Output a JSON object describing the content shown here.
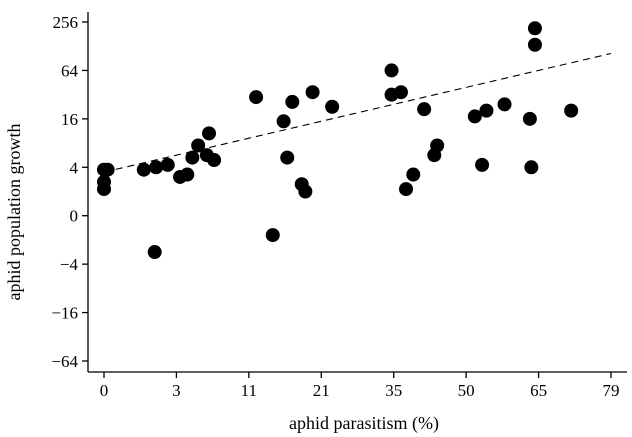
{
  "chart_data": {
    "type": "scatter",
    "title": "",
    "xlabel": "aphid parasitism (%)",
    "ylabel": "aphid population growth",
    "x_ticks": [
      "0",
      "3",
      "11",
      "21",
      "35",
      "50",
      "65",
      "79"
    ],
    "y_ticks": [
      "256",
      "64",
      "16",
      "4",
      "0",
      "−4",
      "−16",
      "−64"
    ],
    "x_tick_index_range": [
      0,
      7
    ],
    "y_tick_index_range": [
      0,
      7
    ],
    "grid": false,
    "legend": "none",
    "marker_color": "#000000",
    "trend_line": {
      "style": "dashed",
      "from": [
        0,
        3.1
      ],
      "to": [
        7,
        0.65
      ]
    },
    "points": [
      [
        0.0,
        3.3
      ],
      [
        0.0,
        3.45
      ],
      [
        0.0,
        3.05
      ],
      [
        0.55,
        3.05
      ],
      [
        0.05,
        3.05
      ],
      [
        0.7,
        4.75
      ],
      [
        0.72,
        3.0
      ],
      [
        0.88,
        2.95
      ],
      [
        1.05,
        3.2
      ],
      [
        1.15,
        3.15
      ],
      [
        1.22,
        2.8
      ],
      [
        1.3,
        2.55
      ],
      [
        1.42,
        2.75
      ],
      [
        1.52,
        2.85
      ],
      [
        1.45,
        2.3
      ],
      [
        2.1,
        1.55
      ],
      [
        2.33,
        4.4
      ],
      [
        2.53,
        2.8
      ],
      [
        2.48,
        2.05
      ],
      [
        2.6,
        1.65
      ],
      [
        2.73,
        3.35
      ],
      [
        2.78,
        3.5
      ],
      [
        2.88,
        1.45
      ],
      [
        3.15,
        1.75
      ],
      [
        3.97,
        1.0
      ],
      [
        3.97,
        1.5
      ],
      [
        4.1,
        1.45
      ],
      [
        4.17,
        3.45
      ],
      [
        4.27,
        3.15
      ],
      [
        4.42,
        1.8
      ],
      [
        4.56,
        2.75
      ],
      [
        4.6,
        2.55
      ],
      [
        5.12,
        1.95
      ],
      [
        5.28,
        1.83
      ],
      [
        5.22,
        2.95
      ],
      [
        5.53,
        1.7
      ],
      [
        5.88,
        2.0
      ],
      [
        5.9,
        3.0
      ],
      [
        5.95,
        0.47
      ],
      [
        5.95,
        0.13
      ],
      [
        6.45,
        1.83
      ]
    ]
  }
}
